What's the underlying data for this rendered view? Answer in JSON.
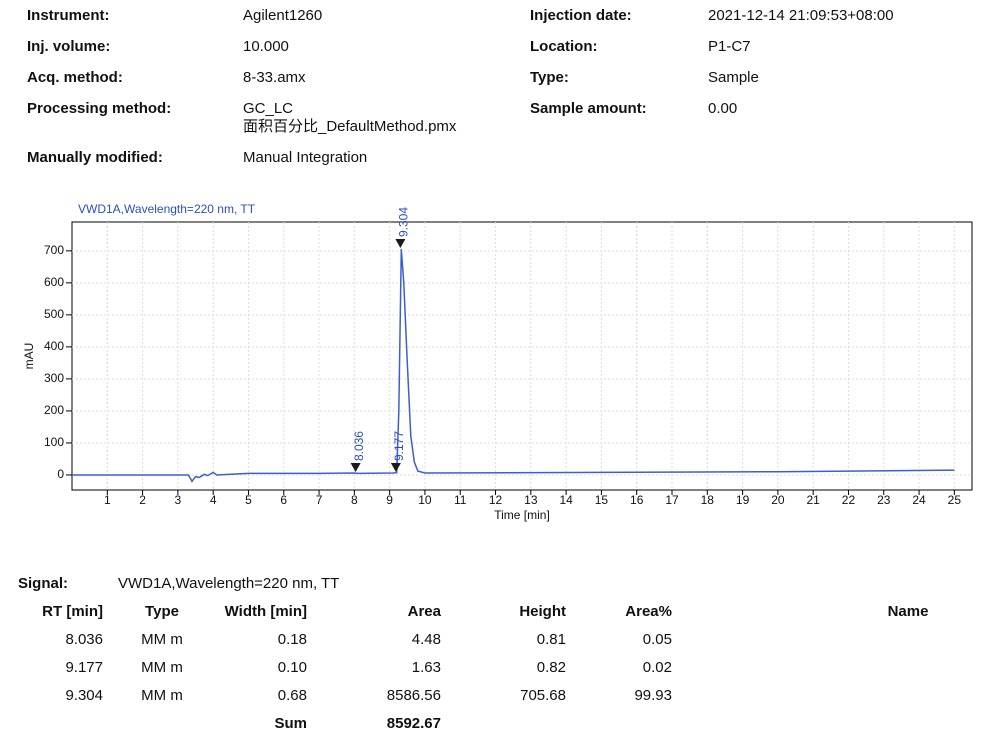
{
  "header": {
    "left": [
      {
        "label": "Instrument:",
        "value": [
          "Agilent1260"
        ]
      },
      {
        "label": "Inj. volume:",
        "value": [
          "10.000"
        ]
      },
      {
        "label": "Acq. method:",
        "value": [
          "8-33.amx"
        ]
      },
      {
        "label": "Processing method:",
        "value": [
          "GC_LC",
          "面积百分比_DefaultMethod.pmx"
        ]
      },
      {
        "label": "Manually modified:",
        "value": [
          "Manual Integration"
        ]
      }
    ],
    "right": [
      {
        "label": "Injection date:",
        "value": [
          "2021-12-14 21:09:53+08:00"
        ]
      },
      {
        "label": "Location:",
        "value": [
          "P1-C7"
        ]
      },
      {
        "label": "Type:",
        "value": [
          "Sample"
        ]
      },
      {
        "label": "Sample amount:",
        "value": [
          "0.00"
        ]
      }
    ]
  },
  "chart_data": {
    "type": "line",
    "title": "VWD1A,Wavelength=220 nm, TT",
    "x_label": "Time [min]",
    "y_label": "mAU",
    "xlim": [
      0,
      25.5
    ],
    "ylim": [
      -47,
      790
    ],
    "xticks": [
      1,
      2,
      3,
      4,
      5,
      6,
      7,
      8,
      9,
      10,
      11,
      12,
      13,
      14,
      15,
      16,
      17,
      18,
      19,
      20,
      21,
      22,
      23,
      24,
      25
    ],
    "yticks": [
      0,
      100,
      200,
      300,
      400,
      500,
      600,
      700
    ],
    "grid": true,
    "series": [
      {
        "color": "#3b5fd0",
        "x": [
          0,
          3.3,
          3.4,
          3.5,
          3.6,
          3.75,
          3.85,
          4,
          4.1,
          4.5,
          5,
          7,
          8.0,
          8.1,
          9.1,
          9.2,
          9.26,
          9.33,
          9.4,
          9.5,
          9.6,
          9.7,
          9.8,
          10,
          15,
          20,
          25
        ],
        "values": [
          0,
          0,
          -20,
          -5,
          -8,
          2,
          -2,
          8,
          0,
          2,
          5,
          5,
          6,
          5,
          6,
          7,
          200,
          705.68,
          600,
          350,
          120,
          40,
          12,
          6,
          8,
          10,
          15
        ]
      }
    ],
    "peaks": {
      "color": "#1a1a1a",
      "x": [
        8.036,
        9.177,
        9.304
      ],
      "y": [
        6,
        6,
        705.68
      ]
    }
  },
  "table": {
    "signal_label": "Signal:",
    "signal": "VWD1A,Wavelength=220 nm, TT",
    "columns": [
      "RT [min]",
      "Type",
      "Width [min]",
      "Area",
      "Height",
      "Area%",
      "Name"
    ],
    "rows": [
      [
        "8.036",
        "MM m",
        "0.18",
        "4.48",
        "0.81",
        "0.05"
      ],
      [
        "9.177",
        "MM m",
        "0.10",
        "1.63",
        "0.82",
        "0.02"
      ],
      [
        "9.304",
        "MM m",
        "0.68",
        "8586.56",
        "705.68",
        "99.93"
      ]
    ],
    "sum_label": "Sum",
    "sum_area": "8592.67"
  }
}
